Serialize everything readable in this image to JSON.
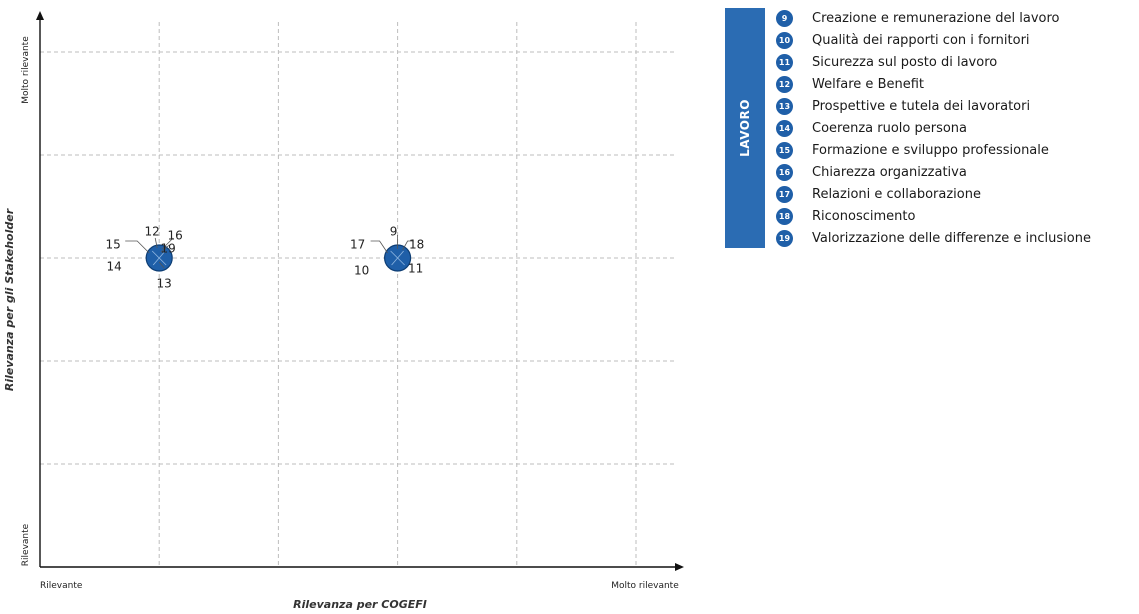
{
  "category_label": "LAVORO",
  "legend": [
    {
      "num": "9",
      "label": "Creazione e remunerazione del lavoro"
    },
    {
      "num": "10",
      "label": "Qualità dei rapporti con i fornitori"
    },
    {
      "num": "11",
      "label": "Sicurezza sul posto di lavoro"
    },
    {
      "num": "12",
      "label": "Welfare e Benefit"
    },
    {
      "num": "13",
      "label": "Prospettive e tutela dei lavoratori"
    },
    {
      "num": "14",
      "label": "Coerenza ruolo persona"
    },
    {
      "num": "15",
      "label": "Formazione e sviluppo professionale"
    },
    {
      "num": "16",
      "label": "Chiarezza organizzativa"
    },
    {
      "num": "17",
      "label": "Relazioni e collaborazione"
    },
    {
      "num": "18",
      "label": "Riconoscimento"
    },
    {
      "num": "19",
      "label": "Valorizzazione delle differenze e inclusione"
    }
  ],
  "chart_data": {
    "type": "scatter",
    "xlabel": "Rilevanza per COGEFI",
    "ylabel": "Rilevanza per gli Stakeholder",
    "x_min_label": "Rilevante",
    "x_max_label": "Molto rilevante",
    "y_min_label": "Rilevante",
    "y_max_label": "Molto rilevante",
    "xlim": [
      0,
      5
    ],
    "ylim": [
      0,
      5
    ],
    "grid": true,
    "colors": {
      "point": "#1f5fa8",
      "point_edge": "#0d3d73",
      "category": "#2b6cb3"
    },
    "clusters": [
      {
        "x": 1,
        "y": 3,
        "ids": [
          "12",
          "16",
          "15",
          "19",
          "14",
          "13"
        ]
      },
      {
        "x": 3,
        "y": 3,
        "ids": [
          "9",
          "17",
          "18",
          "10",
          "11"
        ]
      }
    ]
  }
}
